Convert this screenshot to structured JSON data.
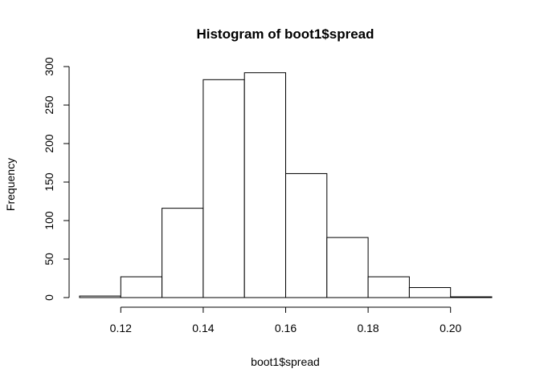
{
  "chart_data": {
    "type": "bar",
    "title": "Histogram of boot1$spread",
    "xlabel": "boot1$spread",
    "ylabel": "Frequency",
    "bins": [
      {
        "start": 0.11,
        "end": 0.12,
        "count": 2
      },
      {
        "start": 0.12,
        "end": 0.13,
        "count": 27
      },
      {
        "start": 0.13,
        "end": 0.14,
        "count": 116
      },
      {
        "start": 0.14,
        "end": 0.15,
        "count": 283
      },
      {
        "start": 0.15,
        "end": 0.16,
        "count": 292
      },
      {
        "start": 0.16,
        "end": 0.17,
        "count": 161
      },
      {
        "start": 0.17,
        "end": 0.18,
        "count": 78
      },
      {
        "start": 0.18,
        "end": 0.19,
        "count": 27
      },
      {
        "start": 0.19,
        "end": 0.2,
        "count": 13
      },
      {
        "start": 0.2,
        "end": 0.21,
        "count": 1
      }
    ],
    "xlim": [
      0.11,
      0.21
    ],
    "ylim": [
      0,
      300
    ],
    "x_ticks": [
      0.12,
      0.14,
      0.16,
      0.18,
      0.2
    ],
    "x_tick_labels": [
      "0.12",
      "0.14",
      "0.16",
      "0.18",
      "0.20"
    ],
    "y_ticks": [
      0,
      50,
      100,
      150,
      200,
      250,
      300
    ],
    "y_tick_labels": [
      "0",
      "50",
      "100",
      "150",
      "200",
      "250",
      "300"
    ],
    "grid": false,
    "bar_fill": "#ffffff",
    "bar_stroke": "#000000"
  }
}
